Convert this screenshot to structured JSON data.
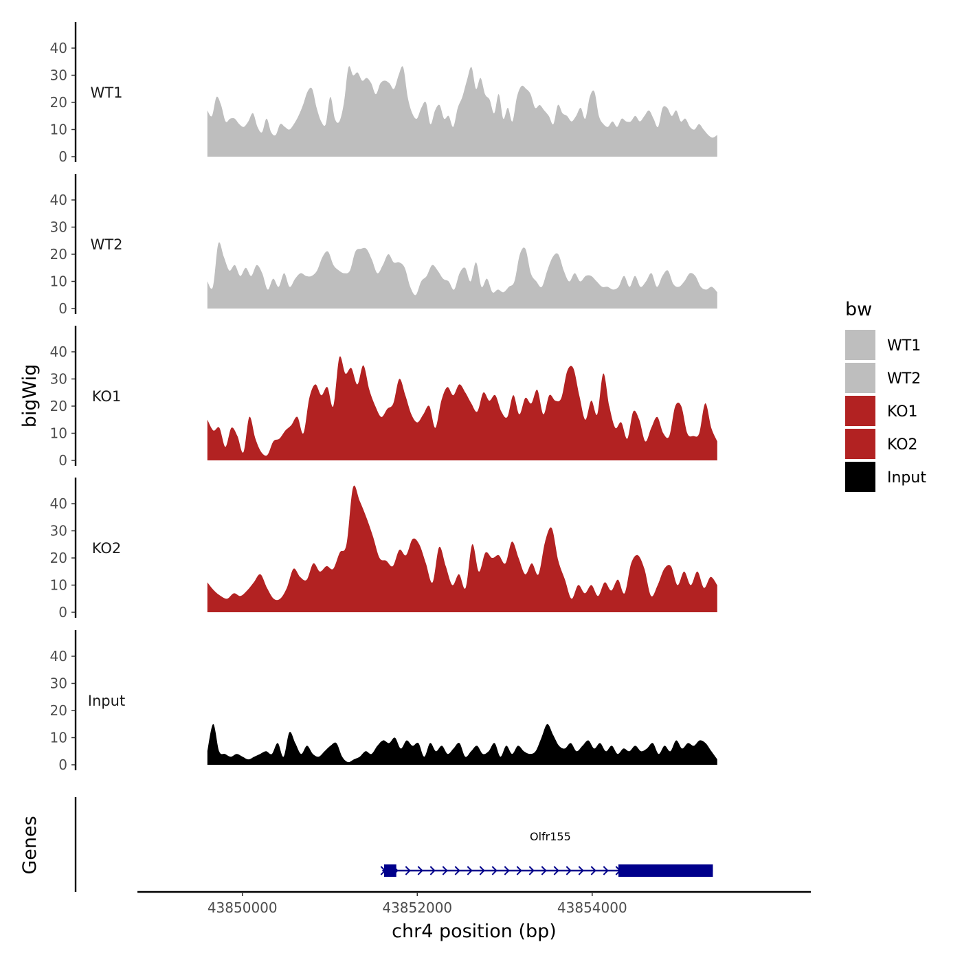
{
  "chart_data": {
    "type": "area",
    "x_unit": "bp",
    "xlabel": "chr4 position (bp)",
    "ylabel": "bigWig",
    "genes_label": "Genes",
    "x_range": [
      43848800,
      43856500
    ],
    "x_ticks": [
      43850000,
      43852000,
      43854000
    ],
    "x_tick_labels": [
      "43850000",
      "43852000",
      "43854000"
    ],
    "y_range": [
      0,
      50
    ],
    "y_ticks": [
      0,
      10,
      20,
      30,
      40
    ],
    "y_tick_labels": [
      "0",
      "10",
      "20",
      "30",
      "40"
    ],
    "signal_x_start": 43849600,
    "signal_x_end": 43855430,
    "legend": {
      "title": "bw",
      "position": "right",
      "entries": [
        {
          "label": "WT1",
          "color": "#bebebe"
        },
        {
          "label": "WT2",
          "color": "#bebebe"
        },
        {
          "label": "KO1",
          "color": "#b22222"
        },
        {
          "label": "KO2",
          "color": "#b22222"
        },
        {
          "label": "Input",
          "color": "#000000"
        }
      ]
    },
    "series": [
      {
        "name": "WT1",
        "color": "#bebebe",
        "values": [
          17,
          15,
          22,
          19,
          13,
          14,
          14,
          12,
          11,
          13,
          16,
          11,
          9,
          14,
          9,
          8,
          12,
          11,
          10,
          12,
          15,
          19,
          24,
          25,
          18,
          13,
          12,
          22,
          14,
          13,
          20,
          33,
          30,
          31,
          28,
          29,
          27,
          23,
          27,
          28,
          27,
          25,
          30,
          33,
          22,
          16,
          14,
          18,
          20,
          12,
          17,
          19,
          14,
          15,
          11,
          18,
          22,
          28,
          33,
          25,
          29,
          23,
          21,
          16,
          23,
          14,
          18,
          13,
          22,
          26,
          25,
          23,
          18,
          19,
          17,
          15,
          12,
          19,
          16,
          15,
          13,
          15,
          18,
          14,
          22,
          24,
          15,
          12,
          11,
          13,
          11,
          14,
          13,
          13,
          15,
          13,
          15,
          17,
          14,
          11,
          18,
          18,
          15,
          17,
          13,
          14,
          11,
          10,
          12,
          10,
          8,
          7,
          8
        ]
      },
      {
        "name": "WT2",
        "color": "#bebebe",
        "values": [
          10,
          8,
          24,
          19,
          14,
          16,
          12,
          15,
          12,
          16,
          13,
          7,
          11,
          8,
          13,
          8,
          11,
          13,
          12,
          12,
          14,
          19,
          21,
          16,
          14,
          13,
          14,
          21,
          22,
          22,
          18,
          13,
          16,
          20,
          17,
          17,
          15,
          8,
          5,
          10,
          12,
          16,
          14,
          11,
          10,
          7,
          13,
          15,
          10,
          17,
          8,
          11,
          6,
          7,
          6,
          8,
          10,
          20,
          22,
          13,
          10,
          8,
          14,
          19,
          20,
          14,
          10,
          13,
          10,
          12,
          12,
          10,
          8,
          8,
          7,
          8,
          12,
          8,
          12,
          8,
          10,
          13,
          8,
          12,
          14,
          9,
          8,
          10,
          13,
          12,
          8,
          7,
          8,
          6
        ]
      },
      {
        "name": "KO1",
        "color": "#b22222",
        "values": [
          15,
          11,
          12,
          5,
          12,
          9,
          3,
          16,
          8,
          3,
          2,
          7,
          8,
          11,
          13,
          16,
          10,
          23,
          28,
          24,
          27,
          20,
          38,
          32,
          34,
          28,
          35,
          26,
          20,
          16,
          19,
          21,
          30,
          24,
          17,
          14,
          17,
          20,
          12,
          22,
          27,
          24,
          28,
          25,
          21,
          18,
          25,
          22,
          24,
          18,
          16,
          24,
          17,
          23,
          21,
          26,
          17,
          24,
          22,
          23,
          33,
          34,
          24,
          15,
          22,
          17,
          32,
          20,
          12,
          14,
          8,
          18,
          15,
          7,
          12,
          16,
          10,
          9,
          20,
          20,
          10,
          9,
          10,
          21,
          12,
          7
        ]
      },
      {
        "name": "KO2",
        "color": "#b22222",
        "values": [
          11,
          8,
          6,
          5,
          7,
          6,
          8,
          11,
          14,
          9,
          5,
          5,
          9,
          16,
          13,
          12,
          18,
          15,
          17,
          16,
          22,
          25,
          46,
          41,
          35,
          28,
          20,
          19,
          17,
          23,
          21,
          27,
          25,
          18,
          11,
          24,
          17,
          10,
          14,
          9,
          25,
          15,
          22,
          20,
          21,
          18,
          26,
          20,
          14,
          18,
          14,
          26,
          31,
          19,
          12,
          5,
          10,
          7,
          10,
          6,
          11,
          8,
          12,
          7,
          18,
          21,
          16,
          6,
          10,
          16,
          17,
          10,
          15,
          10,
          15,
          9,
          13,
          10
        ]
      },
      {
        "name": "Input",
        "color": "#000000",
        "values": [
          5,
          15,
          5,
          4,
          3,
          4,
          3,
          2,
          3,
          4,
          5,
          4,
          8,
          3,
          12,
          8,
          4,
          7,
          4,
          3,
          5,
          7,
          8,
          3,
          1,
          2,
          3,
          5,
          4,
          7,
          9,
          8,
          10,
          6,
          9,
          7,
          8,
          3,
          8,
          5,
          7,
          4,
          6,
          8,
          3,
          5,
          7,
          4,
          5,
          8,
          3,
          7,
          4,
          7,
          5,
          4,
          5,
          10,
          15,
          11,
          7,
          6,
          8,
          5,
          7,
          9,
          6,
          8,
          5,
          7,
          4,
          6,
          5,
          7,
          5,
          6,
          8,
          4,
          7,
          5,
          9,
          6,
          8,
          7,
          9,
          8,
          5,
          2
        ]
      }
    ],
    "genes": [
      {
        "name": "Olfr155",
        "strand": "+",
        "color": "#00008b",
        "start": 43851600,
        "end": 43855380,
        "exons": [
          [
            43851620,
            43851760
          ],
          [
            43854300,
            43855380
          ]
        ]
      }
    ]
  }
}
